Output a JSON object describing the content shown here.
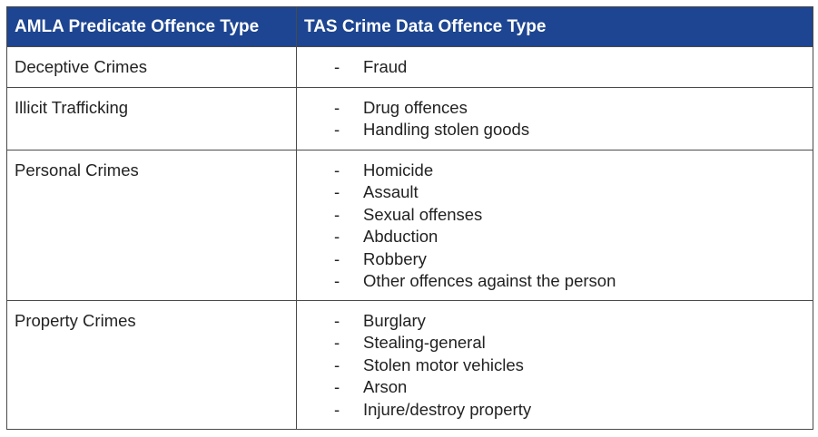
{
  "table": {
    "headers": [
      "AMLA Predicate Offence Type",
      "TAS Crime Data Offence Type"
    ],
    "rows": [
      {
        "category": "Deceptive Crimes",
        "offences": [
          "Fraud"
        ]
      },
      {
        "category": "Illicit Trafficking",
        "offences": [
          "Drug offences",
          "Handling stolen goods"
        ]
      },
      {
        "category": "Personal Crimes",
        "offences": [
          "Homicide",
          "Assault",
          "Sexual offenses",
          "Abduction",
          "Robbery",
          "Other offences against the person"
        ]
      },
      {
        "category": "Property Crimes",
        "offences": [
          "Burglary",
          "Stealing-general",
          "Stolen motor vehicles",
          "Arson",
          "Injure/destroy property"
        ]
      }
    ],
    "bullet_marker": "-",
    "header_color": "#1d4591"
  }
}
